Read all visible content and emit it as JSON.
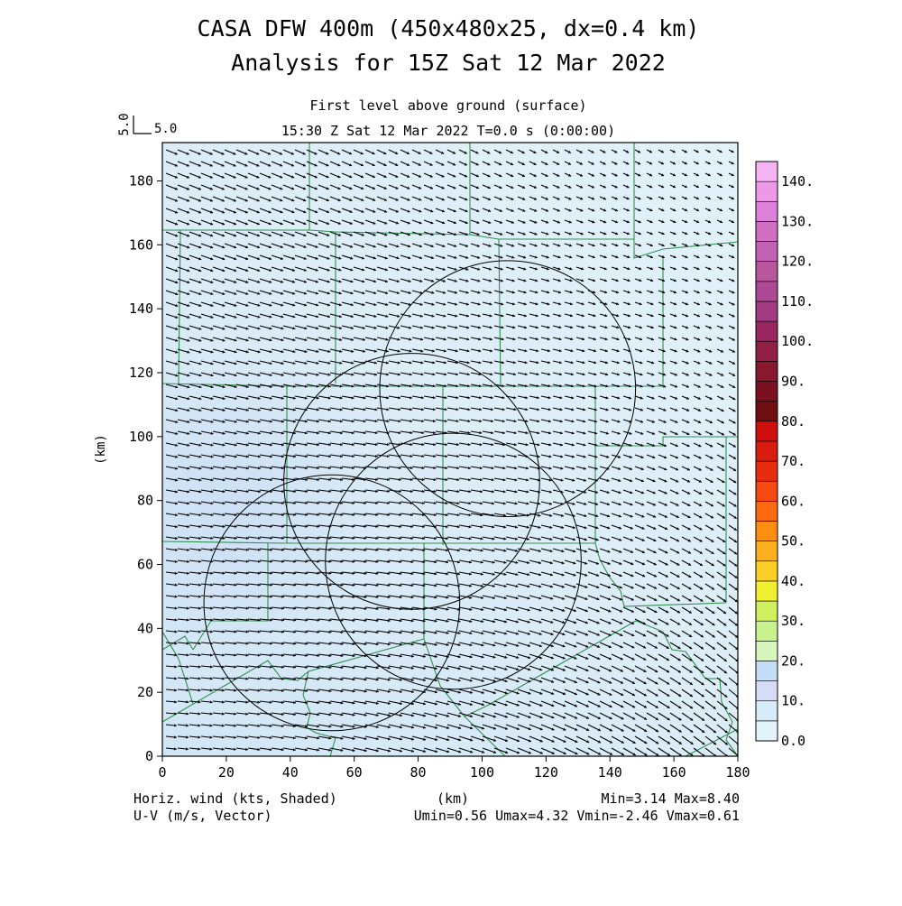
{
  "header": {
    "title_line1": "CASA DFW 400m (450x480x25, dx=0.4 km)",
    "title_line2": "Analysis for 15Z Sat 12 Mar 2022",
    "subtitle": "First level above ground (surface)",
    "time_label": "15:30 Z Sat 12 Mar 2022    T=0.0 s (0:00:00)",
    "ref_vector_label_v": "5.0",
    "ref_vector_label_u": "5.0"
  },
  "footer": {
    "left_line1": "Horiz. wind (kts, Shaded)",
    "left_line2": "U-V (m/s, Vector)",
    "center": "(km)",
    "right_line1": "Min=3.14 Max=8.40",
    "right_line2": "Umin=0.56 Umax=4.32 Vmin=-2.46 Vmax=0.61"
  },
  "chart_data": {
    "type": "heatmap",
    "title": "CASA DFW 400m (450x480x25, dx=0.4 km)",
    "subtitle": "Analysis for 15Z Sat 12 Mar 2022",
    "xlabel": "(km)",
    "ylabel": "(km)",
    "xlim": [
      0,
      180
    ],
    "ylim": [
      0,
      192
    ],
    "x_ticks": [
      0,
      20,
      40,
      60,
      80,
      100,
      120,
      140,
      160,
      180
    ],
    "y_ticks": [
      0,
      20,
      40,
      60,
      80,
      100,
      120,
      140,
      160,
      180
    ],
    "shaded_field": "Horiz. wind (kts)",
    "vector_field": "U-V (m/s)",
    "field_min": 3.14,
    "field_max": 8.4,
    "u_range": [
      0.56,
      4.32
    ],
    "v_range": [
      -2.46,
      0.61
    ],
    "reference_vector": 5.0,
    "colorbar": {
      "levels": [
        0,
        5,
        10,
        15,
        20,
        25,
        30,
        35,
        40,
        45,
        50,
        55,
        60,
        65,
        70,
        75,
        80,
        85,
        90,
        95,
        100,
        105,
        110,
        115,
        120,
        125,
        130,
        135,
        140
      ],
      "labels": [
        "0.0",
        "10.",
        "20.",
        "30.",
        "40.",
        "50.",
        "60.",
        "70.",
        "80.",
        "90.",
        "100.",
        "110.",
        "120.",
        "130.",
        "140."
      ],
      "colors": [
        "#e2f4fa",
        "#d6ecf8",
        "#d4dcf6",
        "#c4def8",
        "#d6f6bc",
        "#c8f28e",
        "#d0f060",
        "#f2ee30",
        "#fcd026",
        "#fcb020",
        "#fc8e10",
        "#fb6a10",
        "#f64a10",
        "#e82c0e",
        "#d81c10",
        "#cf0e0e",
        "#6e0e10",
        "#7a1020",
        "#88182c",
        "#921f46",
        "#9a2660",
        "#a23a84",
        "#ac4a96",
        "#b8569e",
        "#c262b4",
        "#d06ec2",
        "#dc82d8",
        "#ec9ae6",
        "#f6b4f2"
      ]
    },
    "radar_rings": [
      {
        "center": [
          78,
          86
        ],
        "radius": 40
      },
      {
        "center": [
          108,
          115
        ],
        "radius": 40
      },
      {
        "center": [
          53,
          48
        ],
        "radius": 40
      },
      {
        "center": [
          91,
          61
        ],
        "radius": 40
      }
    ],
    "wind_field": {
      "mean_direction": "from west-northwest",
      "u_mean": 2.9,
      "v_mean": -1.1
    }
  }
}
